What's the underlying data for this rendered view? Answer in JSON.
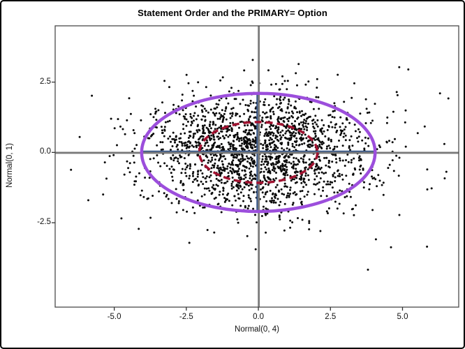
{
  "chart_data": {
    "type": "scatter",
    "title": "Statement Order and the PRIMARY= Option",
    "xlabel": "Normal(0, 4)",
    "ylabel": "Normal(0, 1)",
    "xlim": [
      -7.05,
      6.95
    ],
    "ylim": [
      -5.5,
      4.5
    ],
    "grid": false,
    "legend": "none",
    "x_ticks": [
      {
        "value": -5,
        "label": "-5.0"
      },
      {
        "value": -2.5,
        "label": "-2.5"
      },
      {
        "value": 0,
        "label": "0.0"
      },
      {
        "value": 2.5,
        "label": "2.5"
      },
      {
        "value": 5,
        "label": "5.0"
      }
    ],
    "y_ticks": [
      {
        "value": 2.5,
        "label": "2.5"
      },
      {
        "value": 0,
        "label": "0.0"
      },
      {
        "value": -2.5,
        "label": "-2.5"
      }
    ],
    "scatter": {
      "description": "Dense cloud of ~2000 simulated points: X ~ Normal(mean 0, variance 4), Y ~ Normal(mean 0, variance 1)",
      "n": 2000,
      "mean": [
        0,
        0
      ],
      "sigma": [
        2.02,
        1.04
      ],
      "clip_x": [
        -6.6,
        6.6
      ],
      "clip_y": [
        -3.45,
        3.3
      ],
      "seed": 1337,
      "marker": "filled-circle",
      "marker_radius_px": 1.5,
      "color": "#0a0a0a"
    },
    "extra_points": [
      [
        3.8,
        -4.17
      ],
      [
        4.6,
        -3.37
      ],
      [
        5.85,
        -3.35
      ],
      [
        6.45,
        0.3
      ],
      [
        -6.5,
        -0.62
      ],
      [
        -6.2,
        0.55
      ],
      [
        6.3,
        2.1
      ],
      [
        -5.9,
        -1.7
      ],
      [
        5.2,
        2.95
      ]
    ],
    "ellipses": [
      {
        "name": "outer-prediction-ellipse",
        "cx": 0,
        "cy": 0,
        "rx": 4.05,
        "ry": 2.1,
        "color": "#9c4edc",
        "stroke_px": 4.5,
        "dash": ""
      },
      {
        "name": "inner-prediction-ellipse",
        "cx": 0,
        "cy": 0,
        "rx": 2.05,
        "ry": 1.08,
        "color": "#a11230",
        "stroke_px": 3.5,
        "dash": "10 6"
      }
    ],
    "reference_lines": [
      {
        "name": "x-refline",
        "orientation": "horizontal",
        "y": 0,
        "extent": "full",
        "color": "#7a7a7a",
        "stroke_px": 2.8
      },
      {
        "name": "y-refline",
        "orientation": "vertical",
        "x": 0,
        "extent": "full",
        "color": "#7a7a7a",
        "stroke_px": 2.8
      },
      {
        "name": "ellipse-major-axis",
        "orientation": "horizontal",
        "y": 0,
        "x1": -4.05,
        "x2": 4.05,
        "color": "#38598c",
        "stroke_px": 2.4
      },
      {
        "name": "ellipse-minor-axis",
        "orientation": "vertical",
        "x": 0,
        "y1": -2.1,
        "y2": 2.1,
        "color": "#38598c",
        "stroke_px": 2.4
      }
    ],
    "colors": {
      "background": "#ffffff",
      "outer_border": "#000000",
      "frame": "#4a4a4a",
      "tick": "#333333",
      "text": "#111111"
    }
  }
}
